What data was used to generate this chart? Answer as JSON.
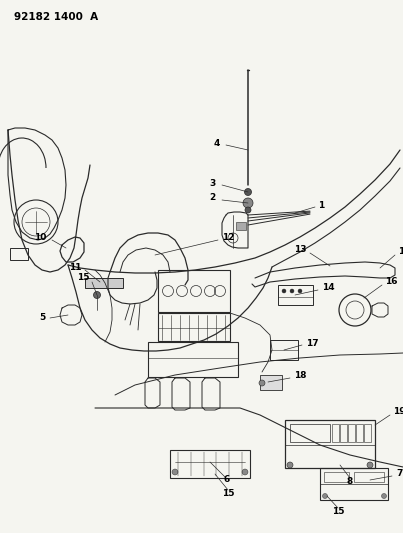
{
  "title": "92182 1400  A",
  "bg_color": "#f5f5f0",
  "line_color": "#2a2a2a",
  "text_color": "#000000",
  "fig_width": 4.03,
  "fig_height": 5.33,
  "dpi": 100
}
